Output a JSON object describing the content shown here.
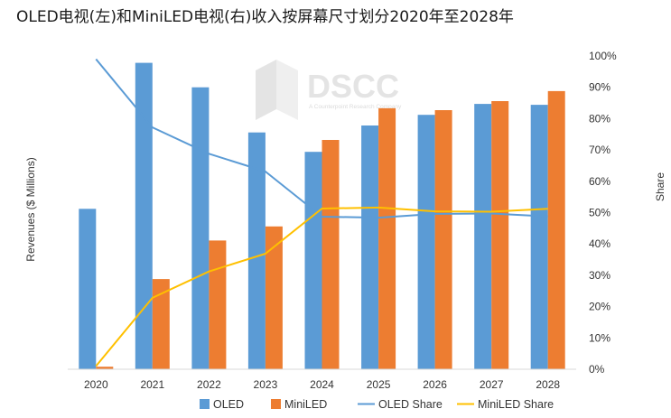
{
  "chart_data": {
    "type": "bar",
    "title": "OLED电视(左)和MiniLED电视(右)收入按屏幕尺寸划分2020年至2028年",
    "ylabel": "Revenues ($ Millions)",
    "y2label": "Share",
    "categories": [
      "2020",
      "2021",
      "2022",
      "2023",
      "2024",
      "2025",
      "2026",
      "2027",
      "2028"
    ],
    "ylim": [
      0,
      100
    ],
    "y2lim": [
      0,
      100
    ],
    "y2_ticks": [
      "0%",
      "10%",
      "20%",
      "30%",
      "40%",
      "50%",
      "60%",
      "70%",
      "80%",
      "90%",
      "100%"
    ],
    "grid": false,
    "legend_position": "bottom",
    "series": [
      {
        "name": "OLED",
        "kind": "bar",
        "axis": "left",
        "color": "#5b9bd5",
        "values": [
          51.2,
          97.8,
          90.0,
          75.6,
          69.4,
          77.8,
          81.2,
          84.7,
          84.4
        ]
      },
      {
        "name": "MiniLED",
        "kind": "bar",
        "axis": "left",
        "color": "#ed7d31",
        "values": [
          0.8,
          28.8,
          41.1,
          45.6,
          73.2,
          83.3,
          82.7,
          85.6,
          88.8
        ]
      },
      {
        "name": "OLED Share",
        "kind": "line",
        "axis": "right",
        "color": "#5b9bd5",
        "values": [
          99.0,
          77.2,
          68.8,
          63.1,
          48.7,
          48.4,
          49.6,
          49.7,
          48.8
        ]
      },
      {
        "name": "MiniLED Share",
        "kind": "line",
        "axis": "right",
        "color": "#ffc000",
        "values": [
          1.0,
          22.8,
          31.2,
          36.9,
          51.3,
          51.6,
          50.4,
          50.3,
          51.2
        ]
      }
    ],
    "watermark": {
      "brand": "DSCC",
      "tagline": "A Counterpoint Research Company"
    }
  }
}
